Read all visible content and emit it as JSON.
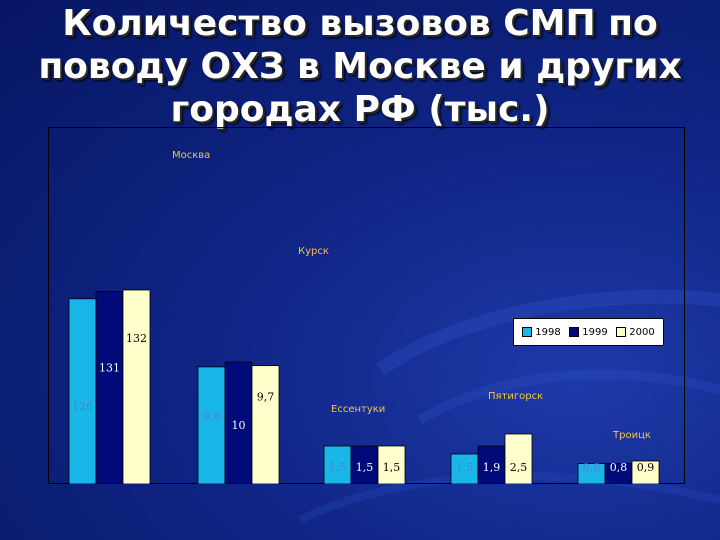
{
  "title": "Количество вызовов СМП по поводу ОХЗ в Москве и других городах РФ (тыс.)",
  "colors": {
    "background": "#0f2585",
    "series": [
      "#19b6e9",
      "#000a78",
      "#ffffcc"
    ],
    "city_label": "#f5c542"
  },
  "chart_data": {
    "type": "bar",
    "categories": [
      "Москва",
      "Курск",
      "Ессентуки",
      "Пятигорск",
      "Троицк"
    ],
    "series": [
      {
        "name": "1998",
        "values": [
          126,
          9.6,
          1.5,
          1.5,
          0.8
        ],
        "labels": [
          "126",
          "9,6",
          "1,5",
          "1,5",
          "0,8"
        ]
      },
      {
        "name": "1999",
        "values": [
          131,
          10,
          1.5,
          1.9,
          0.8
        ],
        "labels": [
          "131",
          "10",
          "1,5",
          "1,9",
          "0,8"
        ]
      },
      {
        "name": "2000",
        "values": [
          132,
          9.7,
          1.5,
          2.5,
          0.9
        ],
        "labels": [
          "132",
          "9,7",
          "1,5",
          "2,5",
          "0,9"
        ]
      }
    ],
    "scale_note": "each city drawn on its own scale (independent bar heights)",
    "legend": {
      "position": "right",
      "entries": [
        "1998",
        "1999",
        "2000"
      ]
    }
  }
}
